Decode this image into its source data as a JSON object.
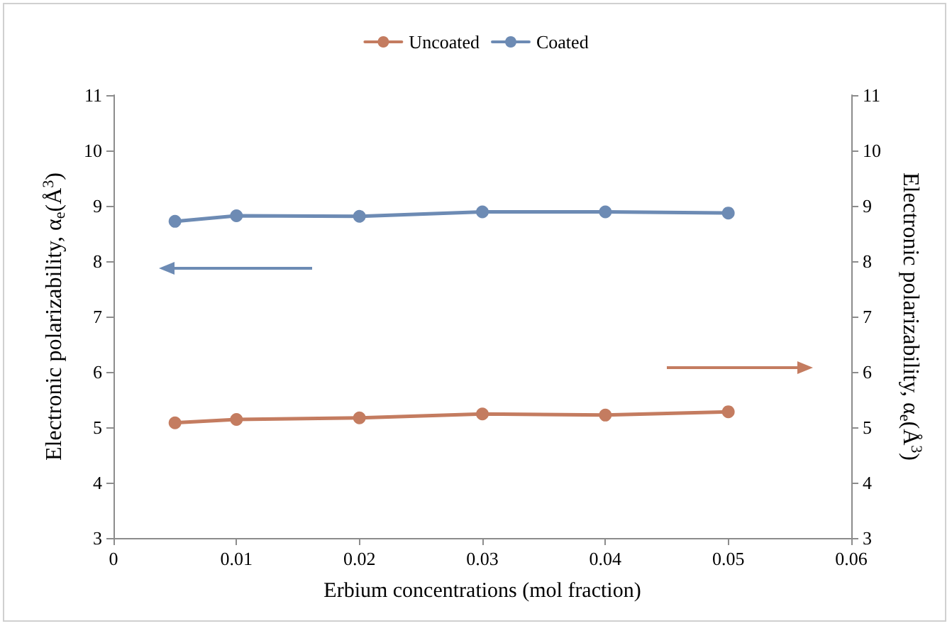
{
  "chart_data": {
    "type": "line",
    "xlabel": "Erbium concentrations (mol fraction)",
    "ylabel": "Electronic polarizability, α$_{e}$(Å$^{3}$)",
    "y2label": "Electronic polarizability, α$_{e}$(Å$^{3}$)",
    "x": [
      0.005,
      0.01,
      0.02,
      0.03,
      0.04,
      0.05
    ],
    "series": [
      {
        "name": "Uncoated",
        "color": "#c47c60",
        "axis": "y2",
        "values": [
          5.08,
          5.14,
          5.17,
          5.24,
          5.22,
          5.28
        ]
      },
      {
        "name": "Coated",
        "color": "#6d8bb4",
        "values": [
          8.72,
          8.82,
          8.81,
          8.89,
          8.89,
          8.87
        ]
      }
    ],
    "xlim": [
      0,
      0.06
    ],
    "xticks": [
      0,
      0.01,
      0.02,
      0.03,
      0.04,
      0.05,
      0.06
    ],
    "ylim": [
      3,
      11
    ],
    "yticks": [
      3,
      4,
      5,
      6,
      7,
      8,
      9,
      10,
      11
    ],
    "y2lim": [
      3,
      11
    ],
    "y2ticks": [
      3,
      4,
      5,
      6,
      7,
      8,
      9,
      10,
      11
    ],
    "grid": false,
    "legend": "top",
    "marker": "circle",
    "line_style": "solid"
  }
}
